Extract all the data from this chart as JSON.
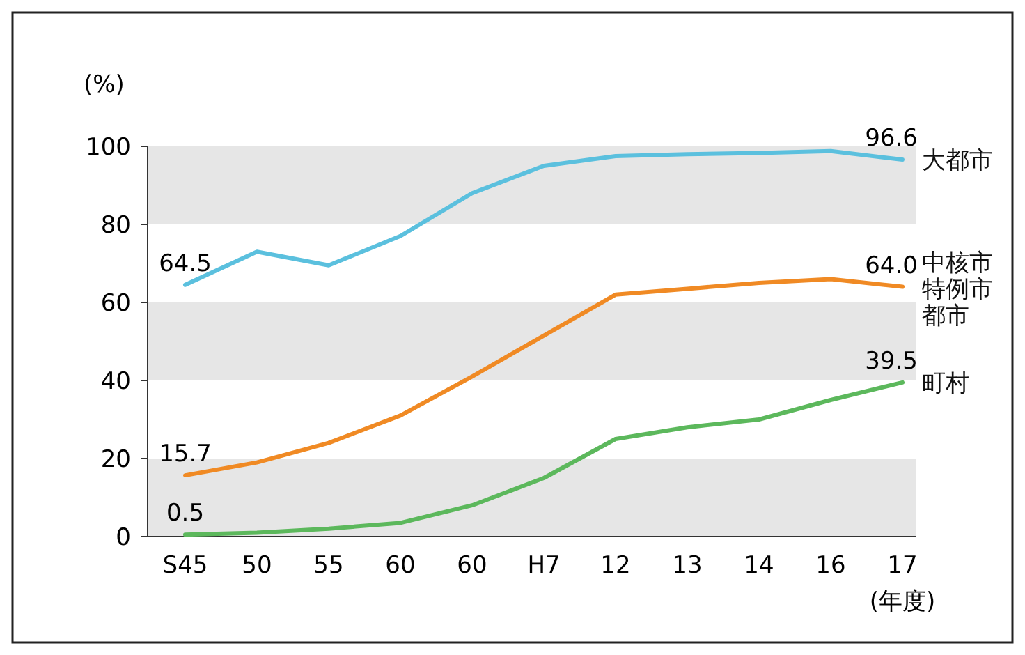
{
  "chart_data": {
    "type": "line",
    "ylabel": "(%)",
    "xlabel": "(年度)",
    "categories": [
      "S45",
      "50",
      "55",
      "60",
      "60",
      "H7",
      "12",
      "13",
      "14",
      "16",
      "17"
    ],
    "ylim": [
      0,
      100
    ],
    "yticks": [
      0,
      20,
      40,
      60,
      80,
      100
    ],
    "bands": [
      {
        "axis": "y",
        "from": 0,
        "to": 20,
        "color": "#e6e6e6"
      },
      {
        "axis": "y",
        "from": 40,
        "to": 60,
        "color": "#e6e6e6"
      },
      {
        "axis": "y",
        "from": 80,
        "to": 100,
        "color": "#e6e6e6"
      }
    ],
    "marker": "none",
    "line_style": "solid",
    "series": [
      {
        "name": "大都市",
        "color": "#5bc0de",
        "values": [
          64.5,
          73,
          69.5,
          77,
          88,
          95,
          97.5,
          98,
          98.3,
          98.8,
          96.6
        ],
        "value_labels": [
          "64.5",
          null,
          null,
          null,
          null,
          null,
          null,
          null,
          null,
          null,
          "96.6"
        ]
      },
      {
        "name": "中核市特例市都市",
        "color": "#f08a24",
        "values": [
          15.7,
          19,
          24,
          31,
          41,
          51.5,
          62,
          63.5,
          65,
          66,
          64.0
        ],
        "value_labels": [
          "15.7",
          null,
          null,
          null,
          null,
          null,
          null,
          null,
          null,
          null,
          "64.0"
        ]
      },
      {
        "name": "町村",
        "color": "#5cb85c",
        "values": [
          0.5,
          1,
          2,
          3.5,
          8,
          15,
          25,
          28,
          30,
          35,
          39.5
        ],
        "value_labels": [
          "0.5",
          null,
          null,
          null,
          null,
          null,
          null,
          null,
          null,
          null,
          "39.5"
        ]
      }
    ]
  }
}
